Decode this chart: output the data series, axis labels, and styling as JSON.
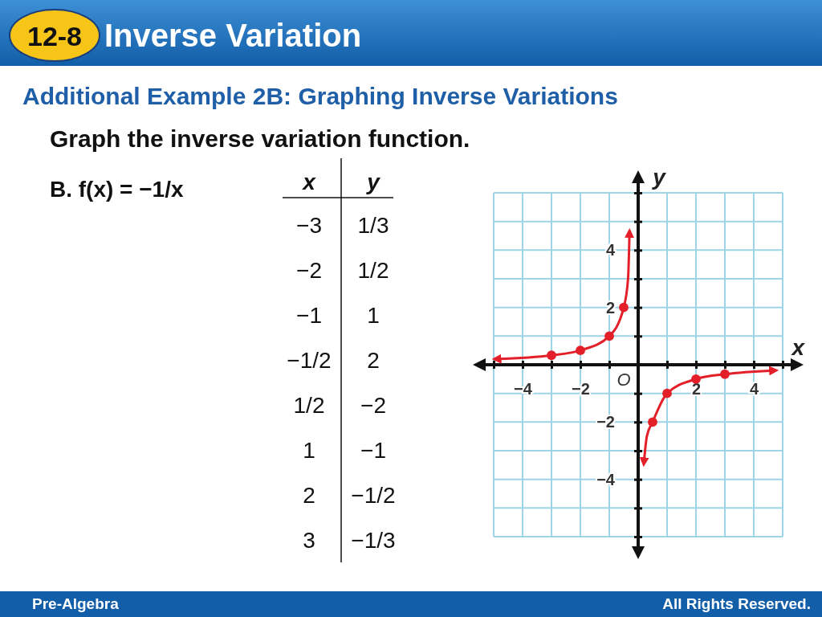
{
  "chart_data": {
    "type": "scatter",
    "title": "Inverse Variation",
    "subtitle": "Additional Example 2B: Graphing Inverse Variations",
    "xlabel": "x",
    "ylabel": "y",
    "annotations": [
      "12-8",
      "Graph the inverse variation function.",
      "B. f(x) = −1/x",
      "O",
      "Pre-Algebra",
      "All Rights Reserved.",
      "−3",
      "1/3",
      "−2",
      "1/2",
      "−1",
      "1",
      "−1/2",
      "2",
      "1/2",
      "−2",
      "1",
      "−1",
      "2",
      "−1/2",
      "3",
      "−1/3"
    ],
    "xlim": [
      -5,
      5
    ],
    "ylim": [
      -6,
      6
    ],
    "xticks": [
      {
        "value": -5,
        "label": null
      },
      {
        "value": -4,
        "label": "−4"
      },
      {
        "value": -3,
        "label": null
      },
      {
        "value": -2,
        "label": "−2"
      },
      {
        "value": -1,
        "label": null
      },
      {
        "value": 0,
        "label": null
      },
      {
        "value": 1,
        "label": null
      },
      2,
      {
        "value": 3,
        "label": null
      },
      4,
      {
        "value": 5,
        "label": null
      }
    ],
    "yticks": [
      {
        "value": -6,
        "label": null
      },
      {
        "value": -5,
        "label": null
      },
      {
        "value": -4,
        "label": "−4"
      },
      {
        "value": -3,
        "label": null
      },
      {
        "value": -2,
        "label": "−2"
      },
      {
        "value": -1,
        "label": null
      },
      {
        "value": 0,
        "label": null
      },
      {
        "value": 1,
        "label": null
      },
      2,
      {
        "value": 3,
        "label": null
      },
      4,
      {
        "value": 5,
        "label": null
      },
      {
        "value": 6,
        "label": null
      }
    ],
    "grid": true,
    "series": [
      {
        "type": "line",
        "color": "#e3202a",
        "marker": "none",
        "x": [
          -4.9,
          -3,
          -2,
          -1,
          -0.5,
          -0.35,
          -0.3
        ],
        "values": [
          0.2,
          0.33,
          0.5,
          1,
          2,
          3,
          4.6
        ]
      },
      {
        "type": "line",
        "color": "#e3202a",
        "marker": "none",
        "x": [
          0.2,
          0.3,
          0.5,
          1,
          2,
          3,
          4.7
        ],
        "values": [
          -3.4,
          -2.5,
          -2,
          -1,
          -0.5,
          -0.33,
          -0.2
        ]
      },
      {
        "type": "scatter",
        "color": "#e3202a",
        "marker": "circle",
        "x": [
          -3,
          -2,
          -1,
          -0.5,
          0.5,
          1,
          2,
          3
        ],
        "values": [
          0.33,
          0.5,
          1,
          2,
          -2,
          -1,
          -0.5,
          -0.33
        ]
      }
    ]
  }
}
